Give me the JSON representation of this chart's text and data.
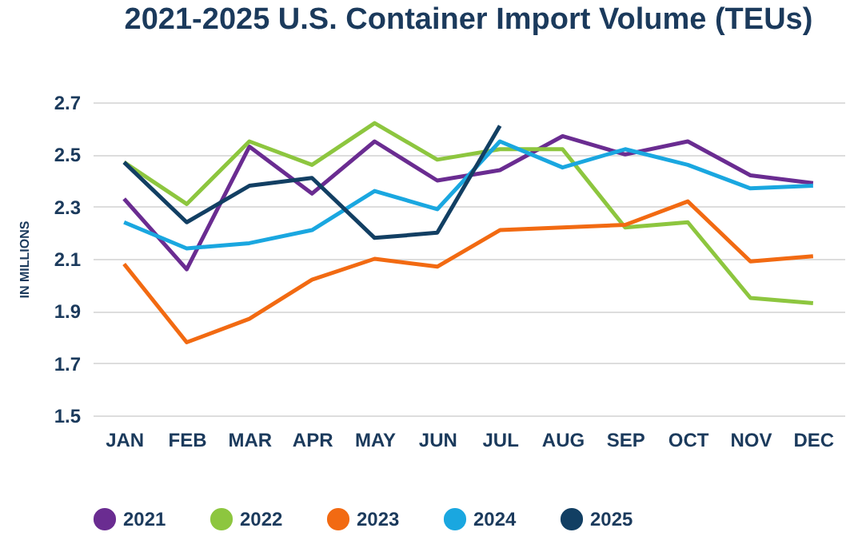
{
  "chart_data": {
    "type": "line",
    "title": "2021-2025 U.S. Container Import Volume (TEUs)",
    "ylabel": "IN MILLIONS",
    "categories": [
      "JAN",
      "FEB",
      "MAR",
      "APR",
      "MAY",
      "JUN",
      "JUL",
      "AUG",
      "SEP",
      "OCT",
      "NOV",
      "DEC"
    ],
    "series": [
      {
        "name": "2021",
        "color": "#6a2c91",
        "values": [
          2.33,
          2.06,
          2.53,
          2.35,
          2.55,
          2.4,
          2.44,
          2.57,
          2.5,
          2.55,
          2.42,
          2.39
        ]
      },
      {
        "name": "2022",
        "color": "#8dc63f",
        "values": [
          2.47,
          2.31,
          2.55,
          2.46,
          2.62,
          2.48,
          2.52,
          2.52,
          2.22,
          2.24,
          1.95,
          1.93
        ]
      },
      {
        "name": "2023",
        "color": "#f26a12",
        "values": [
          2.08,
          1.78,
          1.87,
          2.02,
          2.1,
          2.07,
          2.21,
          2.22,
          2.23,
          2.32,
          2.09,
          2.11
        ]
      },
      {
        "name": "2024",
        "color": "#1aa7e0",
        "values": [
          2.24,
          2.14,
          2.16,
          2.21,
          2.36,
          2.29,
          2.55,
          2.45,
          2.52,
          2.46,
          2.37,
          2.38
        ]
      },
      {
        "name": "2025",
        "color": "#123f63",
        "values": [
          2.47,
          2.24,
          2.38,
          2.41,
          2.18,
          2.2,
          2.61,
          null,
          null,
          null,
          null,
          null
        ]
      }
    ],
    "ylim": [
      1.5,
      2.7
    ],
    "yticks": [
      1.5,
      1.7,
      1.9,
      2.1,
      2.3,
      2.5,
      2.7
    ],
    "grid": "y",
    "legend": "bottom",
    "line_style": "solid"
  }
}
